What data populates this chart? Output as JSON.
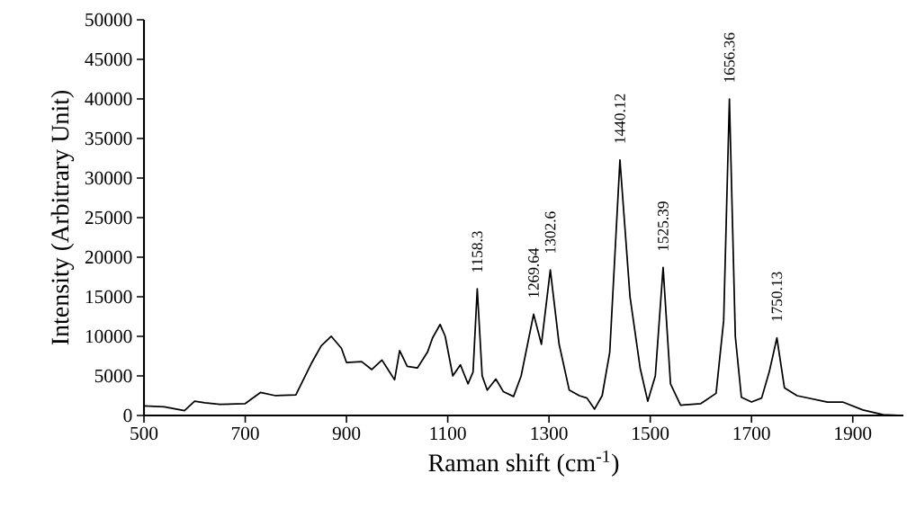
{
  "chart_data": {
    "type": "line",
    "xlabel": "Raman shift (cm$^{-1}$)",
    "ylabel": "Intensity (Arbitrary Unit)",
    "xlim": [
      500,
      2000
    ],
    "ylim": [
      0,
      50000
    ],
    "xticks": [
      500,
      700,
      900,
      1100,
      1300,
      1500,
      1700,
      1900
    ],
    "yticks": [
      0,
      5000,
      10000,
      15000,
      20000,
      25000,
      30000,
      35000,
      40000,
      45000,
      50000
    ],
    "grid": false,
    "x": [
      500,
      540,
      580,
      600,
      620,
      650,
      700,
      730,
      760,
      800,
      830,
      850,
      870,
      890,
      900,
      930,
      950,
      970,
      985,
      995,
      1005,
      1020,
      1040,
      1060,
      1070,
      1085,
      1095,
      1110,
      1125,
      1140,
      1150,
      1158.3,
      1168,
      1178,
      1195,
      1210,
      1230,
      1245,
      1269.64,
      1285,
      1302.6,
      1320,
      1340,
      1360,
      1375,
      1390,
      1405,
      1420,
      1440.12,
      1460,
      1480,
      1495,
      1510,
      1525.39,
      1540,
      1560,
      1600,
      1630,
      1645,
      1656.36,
      1668,
      1680,
      1700,
      1720,
      1735,
      1750.13,
      1765,
      1790,
      1850,
      1880,
      1920,
      1960,
      1990
    ],
    "series": [
      {
        "color": "#000000",
        "values": [
          1200,
          1100,
          600,
          1800,
          1600,
          1400,
          1500,
          2900,
          2500,
          2600,
          6500,
          8800,
          10000,
          8500,
          6700,
          6800,
          5800,
          7000,
          5500,
          4500,
          8200,
          6200,
          6000,
          8000,
          9800,
          11500,
          10000,
          5000,
          6400,
          4000,
          5500,
          16000,
          5000,
          3200,
          4600,
          3000,
          2400,
          5000,
          12800,
          9000,
          18400,
          9000,
          3200,
          2500,
          2200,
          800,
          2500,
          8000,
          32300,
          15000,
          6000,
          1800,
          5000,
          18700,
          4000,
          1300,
          1500,
          2800,
          12000,
          40000,
          10000,
          2300,
          1700,
          2200,
          5500,
          9800,
          3500,
          2500,
          1700,
          1700,
          700,
          100,
          0
        ]
      }
    ],
    "annotations": [
      {
        "text": "1158.3",
        "x": 1158.3,
        "y": 16000
      },
      {
        "text": "1269.64",
        "x": 1269.64,
        "y": 12800
      },
      {
        "text": "1302.6",
        "x": 1302.6,
        "y": 18400
      },
      {
        "text": "1440.12",
        "x": 1440.12,
        "y": 32300
      },
      {
        "text": "1525.39",
        "x": 1525.39,
        "y": 18700
      },
      {
        "text": "1656.36",
        "x": 1656.36,
        "y": 40000
      },
      {
        "text": "1750.13",
        "x": 1750.13,
        "y": 9800
      }
    ]
  }
}
